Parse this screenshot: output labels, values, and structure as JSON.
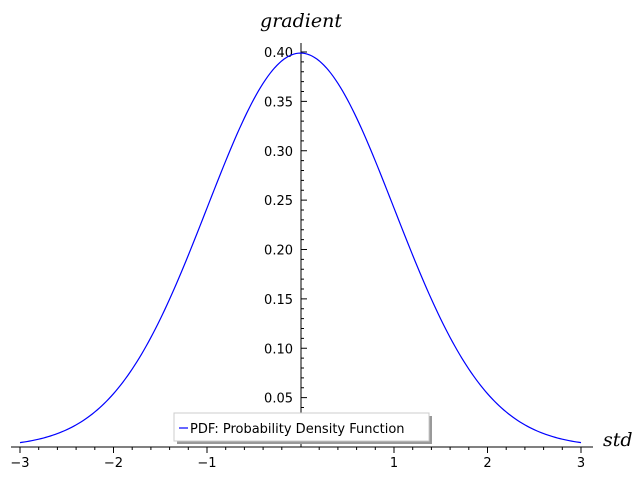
{
  "chart_data": {
    "type": "line",
    "xlabel": "std",
    "ylabel": "gradient",
    "xlim": [
      -3,
      3
    ],
    "ylim": [
      0,
      0.4
    ],
    "x_ticks": [
      "−3",
      "−2",
      "−1",
      "1",
      "2",
      "3"
    ],
    "y_ticks": [
      "0.05",
      "0.10",
      "0.15",
      "0.20",
      "0.25",
      "0.30",
      "0.35",
      "0.40"
    ],
    "series": [
      {
        "name": "PDF: Probability Density Function",
        "color": "#0000ff",
        "x": [
          -3,
          -2.75,
          -2.5,
          -2.25,
          -2,
          -1.75,
          -1.5,
          -1.25,
          -1,
          -0.75,
          -0.5,
          -0.25,
          0,
          0.25,
          0.5,
          0.75,
          1,
          1.25,
          1.5,
          1.75,
          2,
          2.25,
          2.5,
          2.75,
          3
        ],
        "y": [
          0.0044,
          0.0091,
          0.0175,
          0.0317,
          0.054,
          0.0863,
          0.1295,
          0.1826,
          0.242,
          0.3011,
          0.3521,
          0.3867,
          0.3989,
          0.3867,
          0.3521,
          0.3011,
          0.242,
          0.1826,
          0.1295,
          0.0863,
          0.054,
          0.0317,
          0.0175,
          0.0091,
          0.0044
        ]
      }
    ],
    "legend": {
      "placement": "bottom-center",
      "entries": [
        "PDF: Probability Density Function"
      ]
    },
    "grid": false
  }
}
